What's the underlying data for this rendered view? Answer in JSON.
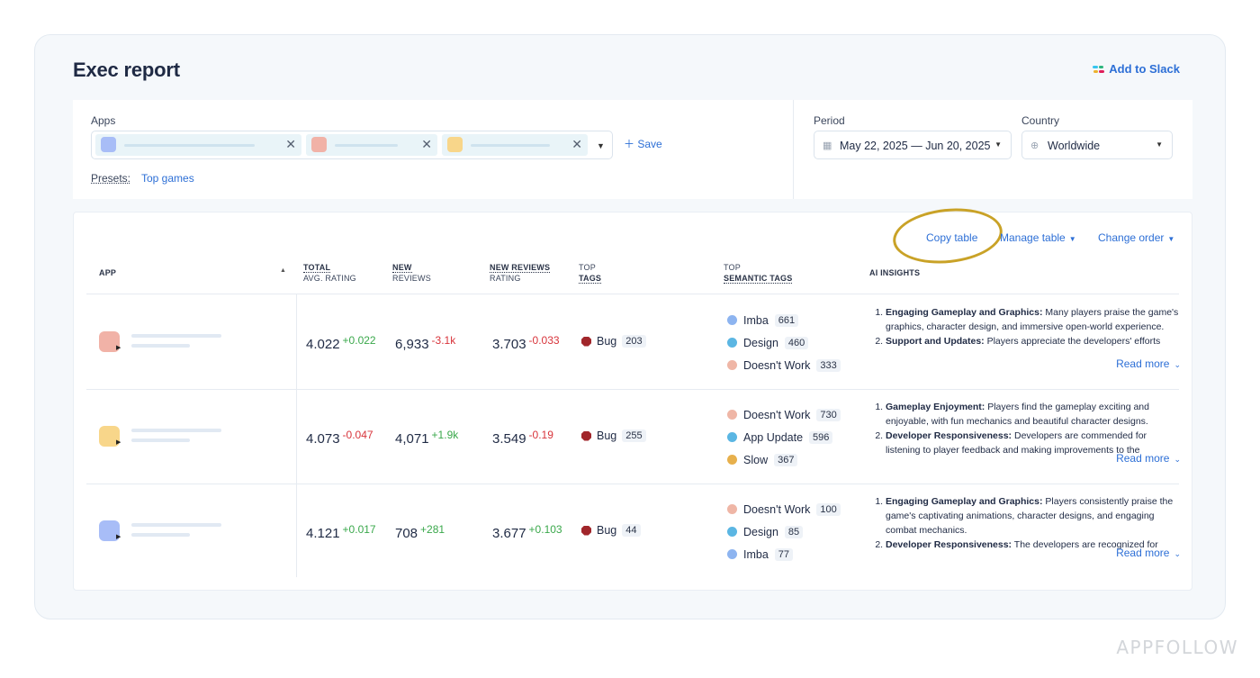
{
  "page": {
    "title": "Exec report",
    "add_to_slack": "Add to Slack"
  },
  "filters": {
    "apps_label": "Apps",
    "apps_chips": [
      {
        "color": "#a8bdf7",
        "remove": "✕"
      },
      {
        "color": "#f1b2a7",
        "remove": "✕"
      },
      {
        "color": "#f8d68a",
        "remove": "✕"
      }
    ],
    "save": "Save",
    "presets_label": "Presets:",
    "presets_value": "Top games",
    "period_label": "Period",
    "period_value": "May 22, 2025 — Jun 20, 2025",
    "country_label": "Country",
    "country_value": "Worldwide"
  },
  "table": {
    "actions": {
      "copy": "Copy table",
      "manage": "Manage table",
      "order": "Change order"
    },
    "headers": {
      "app": "APP",
      "total_1": "TOTAL",
      "total_2": "AVG. RATING",
      "new_1": "NEW",
      "new_2": "REVIEWS",
      "nrr_1": "NEW REVIEWS",
      "nrr_2": "RATING",
      "top_1": "TOP",
      "top_2": "TAGS",
      "sem_1": "TOP",
      "sem_2": "SEMANTIC TAGS",
      "ai": "AI INSIGHTS"
    },
    "rows": [
      {
        "icon_color": "#f1b2a7",
        "rating": "4.022",
        "rating_delta": "+0.022",
        "rating_dir": "pos",
        "reviews": "6,933",
        "reviews_delta": "-3.1k",
        "reviews_dir": "neg",
        "new_rating": "3.703",
        "new_rating_delta": "-0.033",
        "new_rating_dir": "neg",
        "tag": "Bug",
        "tag_count": "203",
        "semantic": [
          {
            "name": "Imba",
            "count": "661",
            "color": "#8db4f0"
          },
          {
            "name": "Design",
            "count": "460",
            "color": "#5bb6e3"
          },
          {
            "name": "Doesn't Work",
            "count": "333",
            "color": "#efb6a6"
          }
        ],
        "insights": [
          {
            "title": "Engaging Gameplay and Graphics:",
            "text": "Many players praise the game's graphics, character design, and immersive open-world experience."
          },
          {
            "title": "Support and Updates:",
            "text": "Players appreciate the developers' efforts"
          }
        ],
        "read_more": "Read more"
      },
      {
        "icon_color": "#f8d68a",
        "rating": "4.073",
        "rating_delta": "-0.047",
        "rating_dir": "neg",
        "reviews": "4,071",
        "reviews_delta": "+1.9k",
        "reviews_dir": "pos",
        "new_rating": "3.549",
        "new_rating_delta": "-0.19",
        "new_rating_dir": "neg",
        "tag": "Bug",
        "tag_count": "255",
        "semantic": [
          {
            "name": "Doesn't Work",
            "count": "730",
            "color": "#efb6a6"
          },
          {
            "name": "App Update",
            "count": "596",
            "color": "#5bb6e3"
          },
          {
            "name": "Slow",
            "count": "367",
            "color": "#e7b04c"
          }
        ],
        "insights": [
          {
            "title": "Gameplay Enjoyment:",
            "text": "Players find the gameplay exciting and enjoyable, with fun mechanics and beautiful character designs."
          },
          {
            "title": "Developer Responsiveness:",
            "text": "Developers are commended for listening to player feedback and making improvements to the"
          }
        ],
        "read_more": "Read more"
      },
      {
        "icon_color": "#a8bdf7",
        "rating": "4.121",
        "rating_delta": "+0.017",
        "rating_dir": "pos",
        "reviews": "708",
        "reviews_delta": "+281",
        "reviews_dir": "pos",
        "new_rating": "3.677",
        "new_rating_delta": "+0.103",
        "new_rating_dir": "pos",
        "tag": "Bug",
        "tag_count": "44",
        "semantic": [
          {
            "name": "Doesn't Work",
            "count": "100",
            "color": "#efb6a6"
          },
          {
            "name": "Design",
            "count": "85",
            "color": "#5bb6e3"
          },
          {
            "name": "Imba",
            "count": "77",
            "color": "#8db4f0"
          }
        ],
        "insights": [
          {
            "title": "Engaging Gameplay and Graphics:",
            "text": "Players consistently praise the game's captivating animations, character designs, and engaging combat mechanics."
          },
          {
            "title": "Developer Responsiveness:",
            "text": "The developers are recognized for"
          }
        ],
        "read_more": "Read more"
      }
    ]
  },
  "watermark": "APPFOLLOW",
  "colors": {
    "accent": "#2d6fd6",
    "positive": "#3aa84b",
    "negative": "#d8343b",
    "highlight": "#c9a227"
  }
}
